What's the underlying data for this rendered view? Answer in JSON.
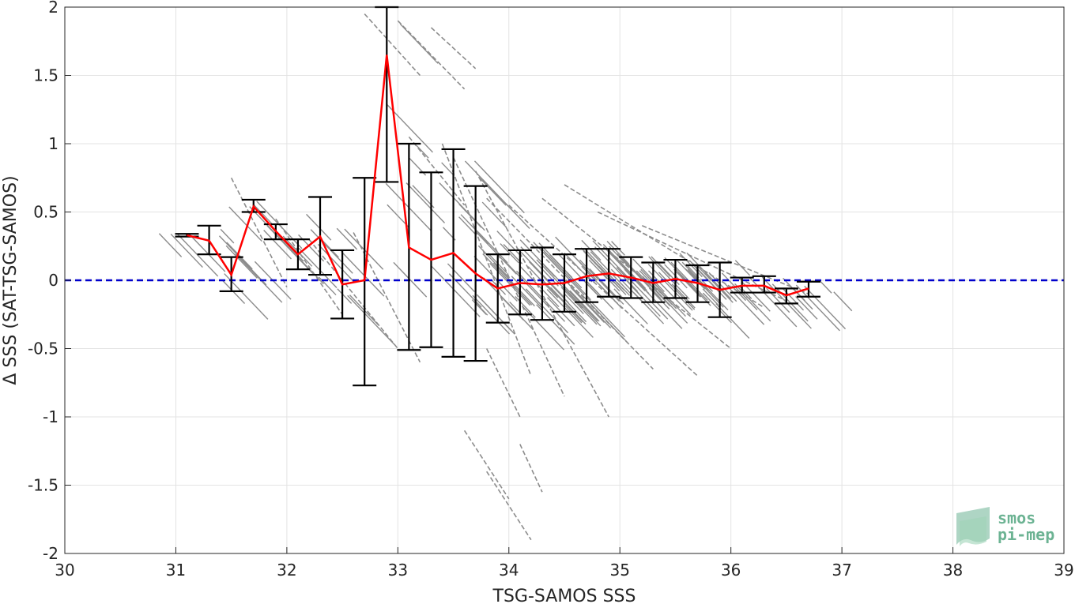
{
  "chart_data": {
    "type": "scatter",
    "title": "",
    "xlabel": "TSG-SAMOS SSS",
    "ylabel": "Δ SSS (SAT-TSG-SAMOS)",
    "xlim": [
      30,
      39
    ],
    "ylim": [
      -2,
      2
    ],
    "x_ticks": [
      30,
      31,
      32,
      33,
      34,
      35,
      36,
      37,
      38,
      39
    ],
    "y_ticks": [
      -2,
      -1.5,
      -1,
      -0.5,
      0,
      0.5,
      1,
      1.5,
      2
    ],
    "x_tick_labels": [
      "30",
      "31",
      "32",
      "33",
      "34",
      "35",
      "36",
      "37",
      "38",
      "39"
    ],
    "y_tick_labels": [
      "-2",
      "-1.5",
      "-1",
      "-0.5",
      "0",
      "0.5",
      "1",
      "1.5",
      "2"
    ],
    "grid": true,
    "zero_line": {
      "y": 0,
      "color": "#0000cc",
      "style": "dashed"
    },
    "binned_mean": {
      "color": "#ff0000",
      "x": [
        31.1,
        31.3,
        31.5,
        31.7,
        31.9,
        32.1,
        32.3,
        32.5,
        32.7,
        32.9,
        33.1,
        33.3,
        33.5,
        33.7,
        33.9,
        34.1,
        34.3,
        34.5,
        34.7,
        34.9,
        35.1,
        35.3,
        35.5,
        35.7,
        35.9,
        36.1,
        36.3,
        36.5,
        36.7
      ],
      "y": [
        0.33,
        0.29,
        0.04,
        0.54,
        0.36,
        0.19,
        0.32,
        -0.03,
        0.0,
        1.65,
        0.24,
        0.15,
        0.2,
        0.05,
        -0.06,
        -0.02,
        -0.03,
        -0.02,
        0.03,
        0.05,
        0.02,
        -0.02,
        0.01,
        -0.02,
        -0.07,
        -0.04,
        -0.04,
        -0.11,
        -0.06
      ],
      "lower": [
        0.32,
        0.19,
        -0.08,
        0.5,
        0.3,
        0.08,
        0.04,
        -0.28,
        -0.77,
        0.72,
        -0.51,
        -0.49,
        -0.56,
        -0.59,
        -0.31,
        -0.25,
        -0.29,
        -0.23,
        -0.16,
        -0.12,
        -0.13,
        -0.16,
        -0.13,
        -0.16,
        -0.27,
        -0.09,
        -0.09,
        -0.17,
        -0.12
      ],
      "upper": [
        0.34,
        0.4,
        0.17,
        0.59,
        0.41,
        0.3,
        0.61,
        0.22,
        0.75,
        2.0,
        1.0,
        0.79,
        0.96,
        0.69,
        0.19,
        0.22,
        0.24,
        0.19,
        0.23,
        0.23,
        0.17,
        0.13,
        0.15,
        0.11,
        0.13,
        0.02,
        0.03,
        -0.06,
        -0.01
      ]
    },
    "scatter_series": {
      "color": "#8c8c8c",
      "segments": [
        [
          31.5,
          0.75,
          32.0,
          -0.05
        ],
        [
          31.9,
          0.45,
          32.5,
          -0.25
        ],
        [
          32.2,
          0.3,
          33.0,
          -0.5
        ],
        [
          32.6,
          0.35,
          33.2,
          -0.6
        ],
        [
          32.7,
          1.95,
          33.2,
          1.5
        ],
        [
          33.0,
          1.9,
          33.6,
          1.4
        ],
        [
          33.3,
          1.85,
          33.7,
          1.55
        ],
        [
          33.1,
          1.05,
          33.6,
          0.55
        ],
        [
          33.4,
          1.0,
          34.2,
          -0.7
        ],
        [
          33.5,
          0.9,
          34.5,
          -0.85
        ],
        [
          33.7,
          0.8,
          34.9,
          -1.0
        ],
        [
          33.8,
          0.6,
          35.3,
          -0.65
        ],
        [
          34.0,
          0.55,
          35.7,
          -0.7
        ],
        [
          34.3,
          0.6,
          36.0,
          -0.5
        ],
        [
          34.5,
          0.7,
          36.3,
          -0.2
        ],
        [
          34.8,
          0.5,
          36.5,
          -0.15
        ],
        [
          35.2,
          0.4,
          36.7,
          -0.1
        ],
        [
          33.8,
          -0.5,
          34.1,
          -1.0
        ],
        [
          33.6,
          -1.1,
          34.0,
          -1.6
        ],
        [
          33.8,
          -1.4,
          34.2,
          -1.9
        ],
        [
          34.1,
          -1.2,
          34.3,
          -1.55
        ]
      ]
    }
  },
  "logo": {
    "line1": "smos",
    "line2": "pi-mep",
    "color": "#6cb393"
  }
}
